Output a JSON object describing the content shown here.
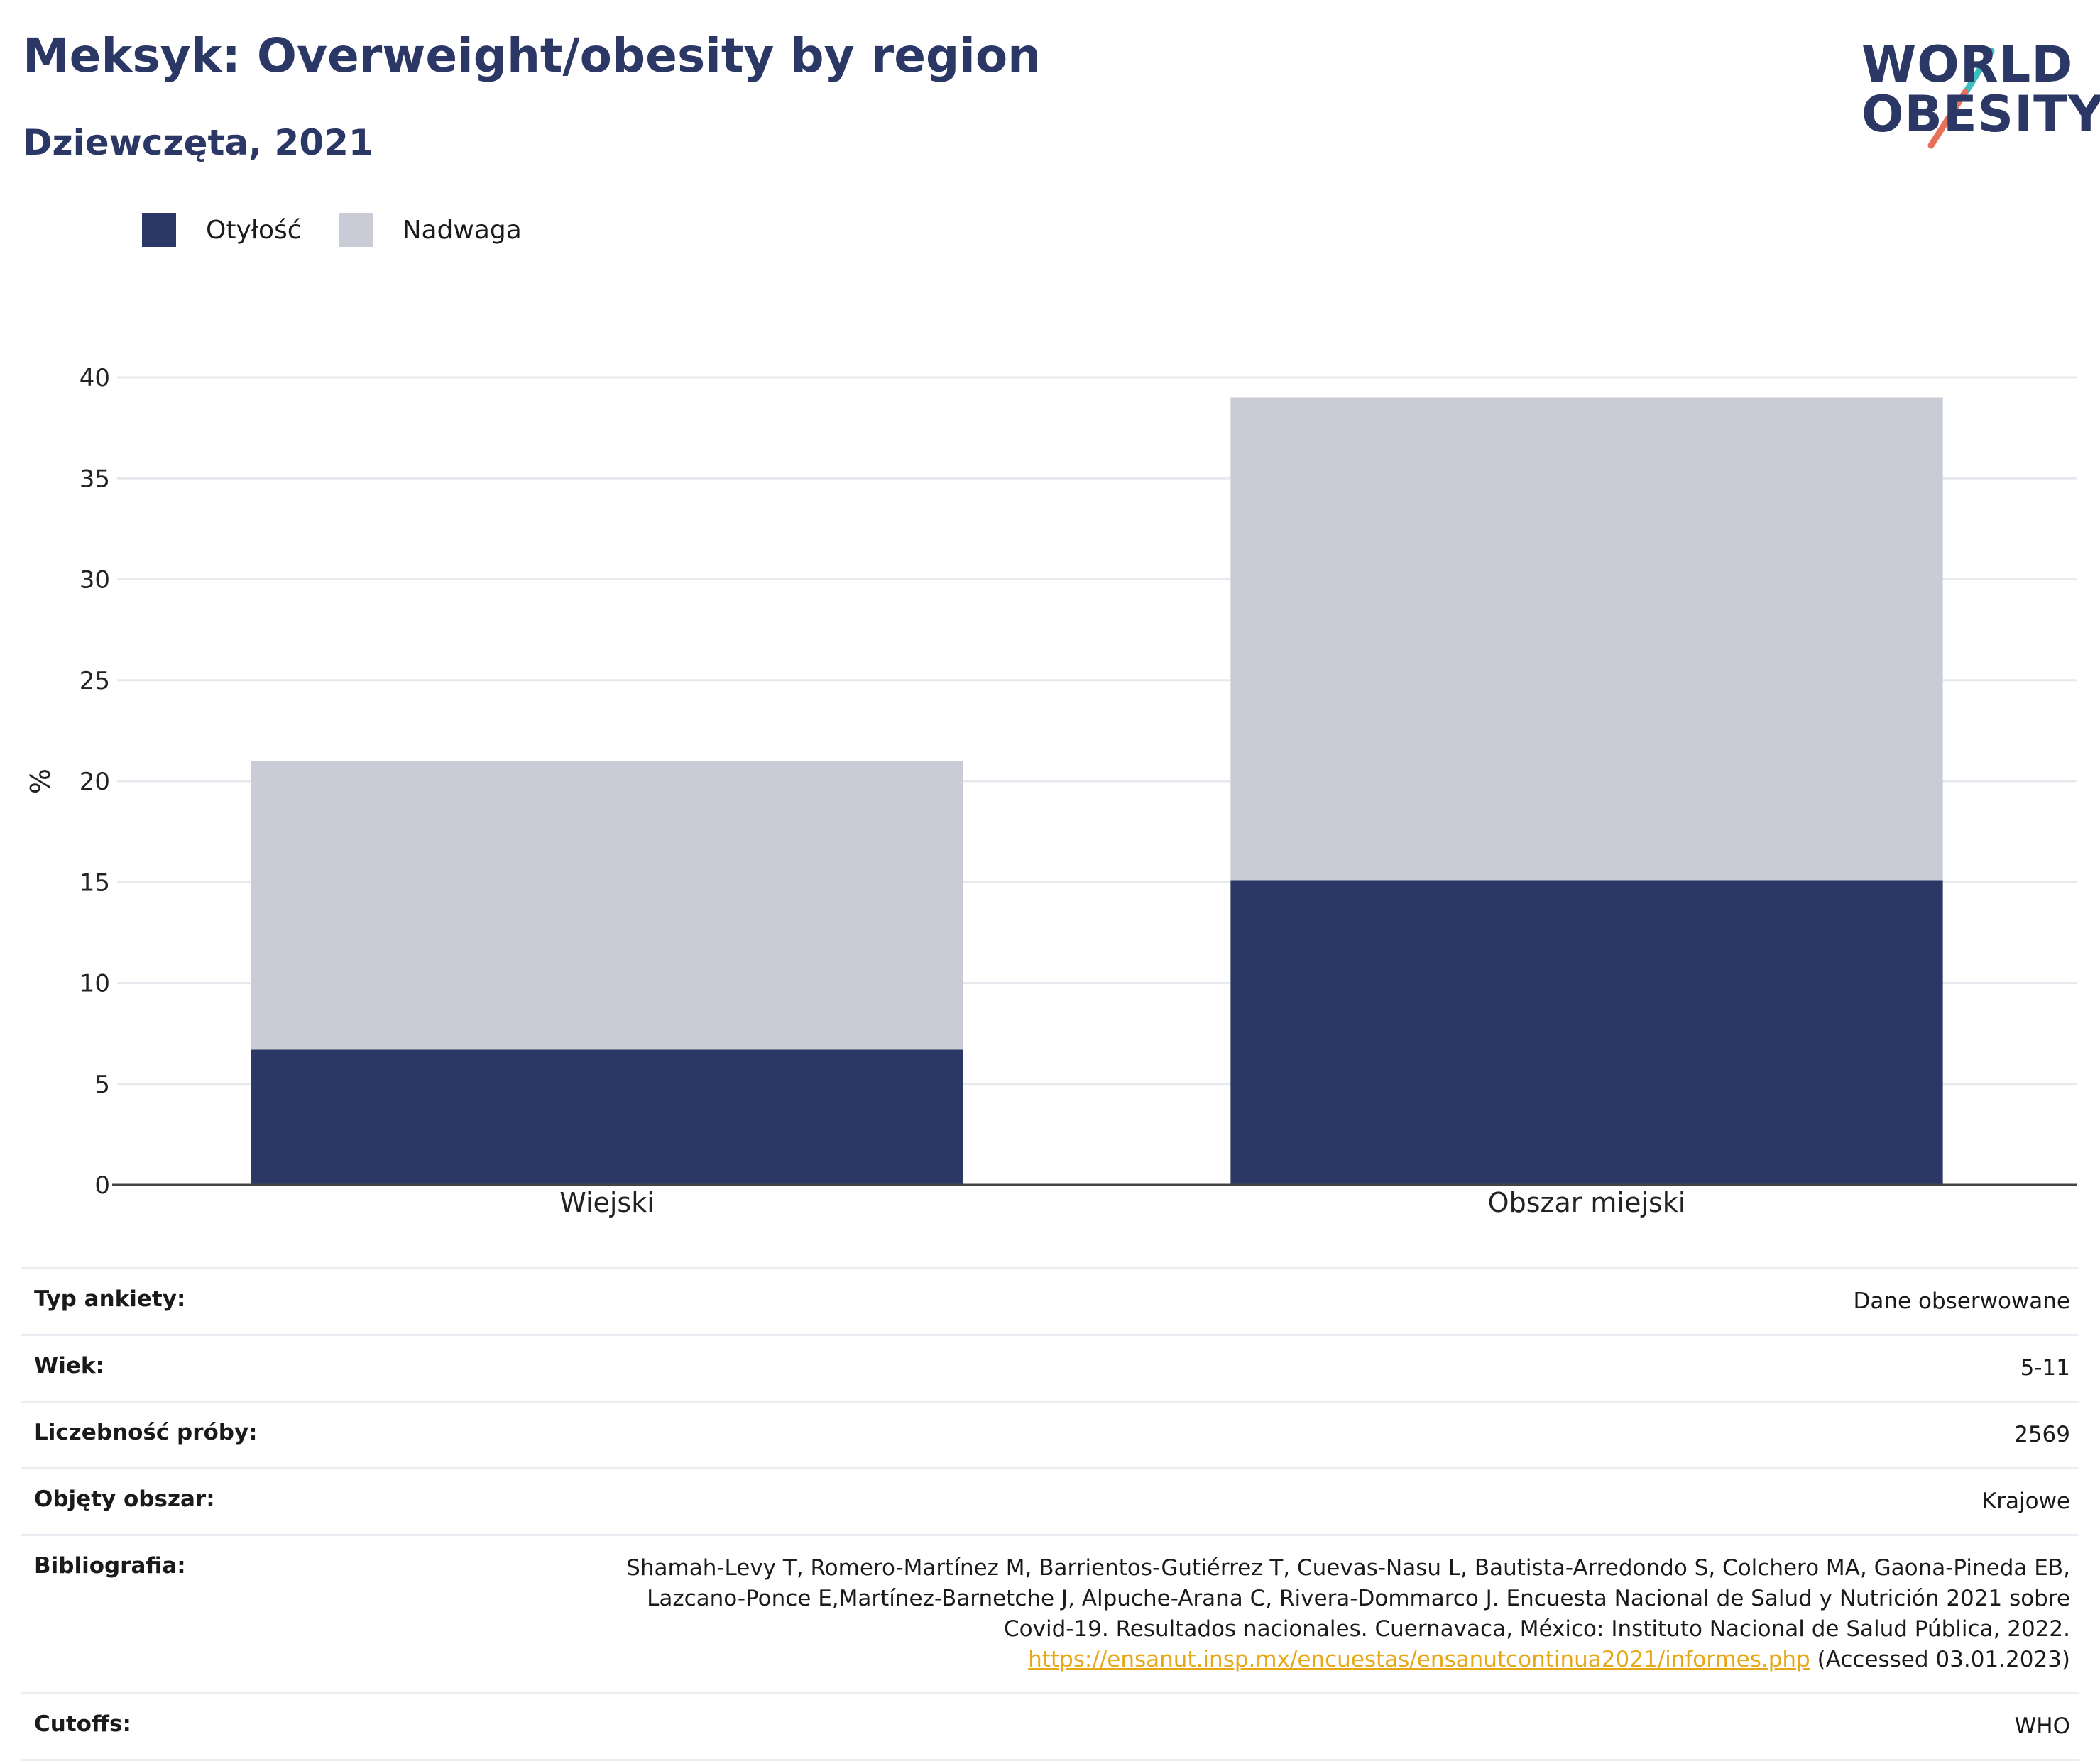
{
  "header": {
    "title": "Meksyk: Overweight/obesity by region",
    "subtitle": "Dziewczęta, 2021"
  },
  "logo": {
    "line1": "WORLD",
    "line2": "OBESITY",
    "text_color": "#2b3765",
    "slash_top_color": "#3dbfbf",
    "slash_bottom_color": "#e8705a"
  },
  "legend": [
    {
      "label": "Otyłość",
      "color": "#2b3765"
    },
    {
      "label": "Nadwaga",
      "color": "#c9ccd7"
    }
  ],
  "chart_data": {
    "type": "bar",
    "stacked": true,
    "categories": [
      "Wiejski",
      "Obszar miejski"
    ],
    "series": [
      {
        "name": "Otyłość",
        "values": [
          6.7,
          15.1
        ],
        "color": "#2b3765"
      },
      {
        "name": "Nadwaga",
        "values": [
          14.3,
          23.9
        ],
        "color": "#c9ccd7"
      }
    ],
    "ylabel": "%",
    "ylim": [
      0,
      40
    ],
    "yticks": [
      0,
      5,
      10,
      15,
      20,
      25,
      30,
      35,
      40
    ],
    "grid": true,
    "legend_position": "top-left"
  },
  "info": [
    {
      "key": "Typ ankiety:",
      "value": "Dane obserwowane"
    },
    {
      "key": "Wiek:",
      "value": "5-11"
    },
    {
      "key": "Liczebność próby:",
      "value": "2569"
    },
    {
      "key": "Objęty obszar:",
      "value": "Krajowe"
    },
    {
      "key": "Bibliografia:",
      "value_lines": [
        "Shamah-Levy T, Romero-Martínez M, Barrientos-Gutiérrez T, Cuevas-Nasu L, Bautista-Arredondo S, Colchero MA, Gaona-Pineda EB,",
        "Lazcano-Ponce E,Martínez-Barnetche J, Alpuche-Arana C, Rivera-Dommarco J. Encuesta Nacional de Salud y Nutrición 2021 sobre",
        "Covid-19. Resultados nacionales. Cuernavaca, México: Instituto Nacional de Salud Pública, 2022."
      ],
      "link": "https://ensanut.insp.mx/encuestas/ensanutcontinua2021/informes.php",
      "link_suffix": " (Accessed 03.01.2023)"
    },
    {
      "key": "Cutoffs:",
      "value": "WHO"
    }
  ]
}
